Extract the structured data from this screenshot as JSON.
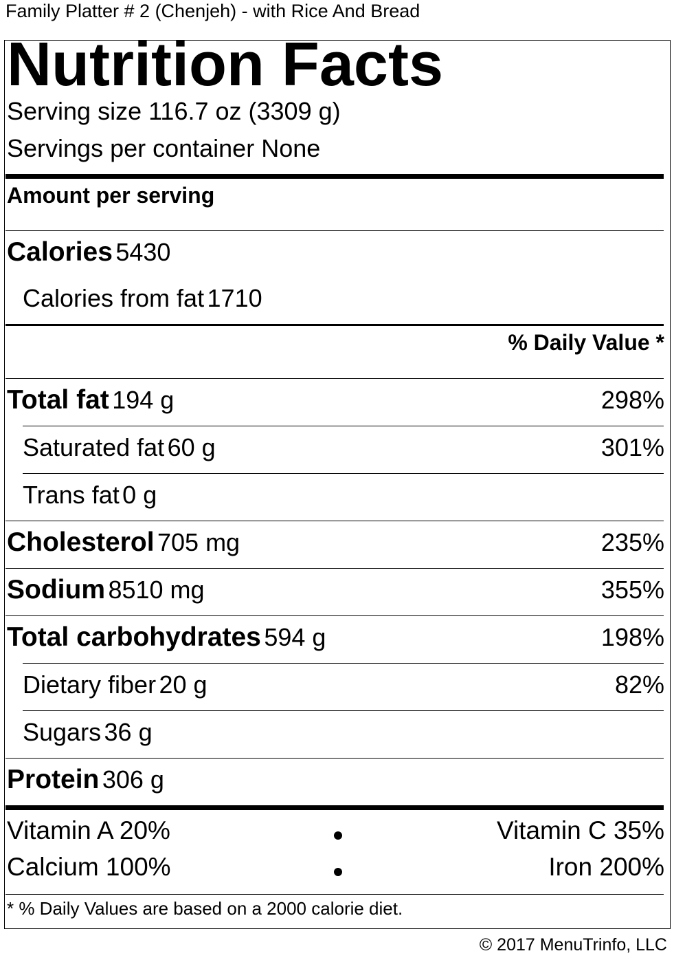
{
  "item_title": "Family Platter # 2 (Chenjeh) - with Rice And Bread",
  "heading": "Nutrition Facts",
  "serving_size": "Serving size 116.7 oz (3309 g)",
  "servings_per_container": "Servings per container None",
  "amount_per_serving": "Amount per serving",
  "calories": {
    "label": "Calories",
    "value": "5430"
  },
  "calories_from_fat": {
    "label": "Calories from fat",
    "value": "1710"
  },
  "daily_value_header": "% Daily Value *",
  "nutrients": {
    "total_fat": {
      "label": "Total fat",
      "amount": "194 g",
      "dv": "298%"
    },
    "saturated_fat": {
      "label": "Saturated fat",
      "amount": "60 g",
      "dv": "301%"
    },
    "trans_fat": {
      "label": "Trans fat",
      "amount": "0 g",
      "dv": ""
    },
    "cholesterol": {
      "label": "Cholesterol",
      "amount": "705 mg",
      "dv": "235%"
    },
    "sodium": {
      "label": "Sodium",
      "amount": "8510 mg",
      "dv": "355%"
    },
    "total_carbohydrates": {
      "label": "Total carbohydrates",
      "amount": "594 g",
      "dv": "198%"
    },
    "dietary_fiber": {
      "label": "Dietary fiber",
      "amount": "20 g",
      "dv": "82%"
    },
    "sugars": {
      "label": "Sugars",
      "amount": "36 g",
      "dv": ""
    },
    "protein": {
      "label": "Protein",
      "amount": "306 g",
      "dv": ""
    }
  },
  "vitamins": {
    "vitamin_a": "Vitamin A 20%",
    "vitamin_c": "Vitamin C 35%",
    "calcium": "Calcium 100%",
    "iron": "Iron 200%"
  },
  "footnote": "* % Daily Values are based on a 2000 calorie diet.",
  "copyright": "© 2017 MenuTrinfo, LLC"
}
